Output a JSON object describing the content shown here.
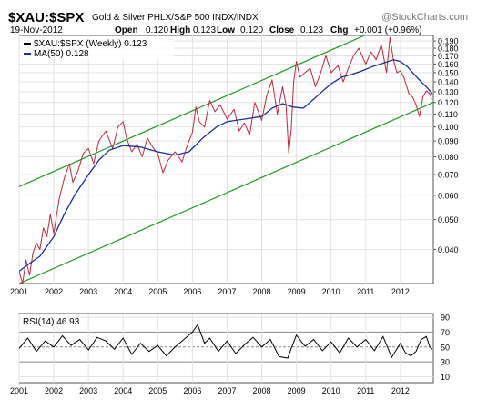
{
  "chart_data": [
    {
      "type": "line",
      "symbol": "$XAU:$SPX",
      "subtitle": "Gold & Silver PHLX/S&P 500  INDX/INDX",
      "watermark": "@StockCharts.com",
      "date": "19-Nov-2012",
      "ohlc": [
        {
          "label": "Open",
          "value": "0.120"
        },
        {
          "label": "Low",
          "value": "0.120"
        },
        {
          "label": "Close",
          "value": "0.123"
        },
        {
          "label": "Chg",
          "value": "+0.001 (+0.96%)"
        }
      ],
      "high_label": "High",
      "high_value": "0.123",
      "legend": [
        {
          "label": "$XAU:$SPX (Weekly) 0.123",
          "color": "#000000"
        },
        {
          "label": "MA(50) 0.128",
          "color": "#1a2f9a"
        }
      ],
      "y_scale": "log",
      "ylim": [
        0.031,
        0.198
      ],
      "xlim": [
        2001.0,
        2012.95
      ],
      "y_ticks": [
        0.19,
        0.18,
        0.17,
        0.16,
        0.15,
        0.14,
        0.13,
        0.12,
        0.11,
        0.1,
        0.09,
        0.08,
        0.07,
        0.06,
        0.05,
        0.04
      ],
      "y_tick_labels": [
        "0.190",
        "0.180",
        "0.170",
        "0.160",
        "0.150",
        "0.140",
        "0.130",
        "0.120",
        "0.110",
        "0.100",
        "0.090",
        "0.080",
        "0.070",
        "0.060",
        "0.050",
        "0.040"
      ],
      "x_ticks": [
        2001,
        2002,
        2003,
        2004,
        2005,
        2006,
        2007,
        2008,
        2009,
        2010,
        2011,
        2012
      ],
      "x_tick_labels": [
        "2001",
        "2002",
        "2003",
        "2004",
        "2005",
        "2006",
        "2007",
        "2008",
        "2009",
        "2010",
        "2011",
        "2012"
      ],
      "series": [
        {
          "name": "$XAU:$SPX (Weekly)",
          "color": "#c0283c",
          "x": [
            2001.0,
            2001.1,
            2001.2,
            2001.3,
            2001.4,
            2001.5,
            2001.6,
            2001.7,
            2001.8,
            2001.9,
            2002.0,
            2002.15,
            2002.3,
            2002.45,
            2002.55,
            2002.7,
            2002.85,
            2003.0,
            2003.15,
            2003.3,
            2003.5,
            2003.7,
            2003.85,
            2004.0,
            2004.1,
            2004.25,
            2004.4,
            2004.55,
            2004.7,
            2004.85,
            2005.0,
            2005.15,
            2005.3,
            2005.5,
            2005.7,
            2005.85,
            2006.0,
            2006.1,
            2006.2,
            2006.35,
            2006.5,
            2006.65,
            2006.8,
            2007.0,
            2007.2,
            2007.35,
            2007.5,
            2007.65,
            2007.8,
            2008.0,
            2008.15,
            2008.3,
            2008.45,
            2008.6,
            2008.7,
            2008.78,
            2008.85,
            2008.92,
            2009.0,
            2009.1,
            2009.25,
            2009.4,
            2009.55,
            2009.7,
            2009.85,
            2010.0,
            2010.2,
            2010.35,
            2010.5,
            2010.65,
            2010.8,
            2011.0,
            2011.15,
            2011.3,
            2011.45,
            2011.6,
            2011.7,
            2011.8,
            2011.9,
            2012.0,
            2012.1,
            2012.25,
            2012.35,
            2012.45,
            2012.55,
            2012.65,
            2012.75,
            2012.85,
            2012.9
          ],
          "values": [
            0.034,
            0.031,
            0.037,
            0.033,
            0.039,
            0.042,
            0.04,
            0.047,
            0.044,
            0.052,
            0.045,
            0.058,
            0.068,
            0.076,
            0.066,
            0.072,
            0.082,
            0.085,
            0.076,
            0.09,
            0.097,
            0.085,
            0.1,
            0.104,
            0.092,
            0.083,
            0.088,
            0.08,
            0.092,
            0.086,
            0.082,
            0.071,
            0.078,
            0.083,
            0.077,
            0.087,
            0.096,
            0.116,
            0.104,
            0.1,
            0.122,
            0.112,
            0.118,
            0.106,
            0.114,
            0.097,
            0.103,
            0.094,
            0.12,
            0.105,
            0.127,
            0.142,
            0.11,
            0.135,
            0.118,
            0.082,
            0.098,
            0.14,
            0.163,
            0.145,
            0.15,
            0.155,
            0.135,
            0.15,
            0.17,
            0.15,
            0.158,
            0.14,
            0.155,
            0.17,
            0.18,
            0.16,
            0.175,
            0.165,
            0.185,
            0.15,
            0.195,
            0.165,
            0.15,
            0.152,
            0.145,
            0.128,
            0.125,
            0.118,
            0.108,
            0.125,
            0.131,
            0.128,
            0.123
          ]
        },
        {
          "name": "MA(50)",
          "color": "#1a2f9a",
          "x": [
            2001.0,
            2001.3,
            2001.6,
            2002.0,
            2002.3,
            2002.6,
            2003.0,
            2003.3,
            2003.6,
            2004.0,
            2004.5,
            2005.0,
            2005.5,
            2005.9,
            2006.3,
            2006.7,
            2007.0,
            2007.5,
            2008.0,
            2008.3,
            2008.6,
            2008.9,
            2009.2,
            2009.5,
            2009.8,
            2010.0,
            2010.3,
            2010.6,
            2010.9,
            2011.2,
            2011.5,
            2011.8,
            2012.0,
            2012.2,
            2012.4,
            2012.6,
            2012.8,
            2012.92
          ],
          "values": [
            0.034,
            0.036,
            0.038,
            0.044,
            0.052,
            0.06,
            0.07,
            0.078,
            0.084,
            0.087,
            0.086,
            0.083,
            0.081,
            0.083,
            0.092,
            0.1,
            0.104,
            0.106,
            0.108,
            0.115,
            0.119,
            0.116,
            0.115,
            0.123,
            0.132,
            0.138,
            0.145,
            0.148,
            0.152,
            0.157,
            0.161,
            0.165,
            0.163,
            0.157,
            0.148,
            0.14,
            0.133,
            0.128
          ]
        }
      ],
      "trend_channel": {
        "color": "#1f9a1f",
        "upper": {
          "x": [
            2001.0,
            2012.95
          ],
          "values": [
            0.064,
            0.248
          ]
        },
        "lower": {
          "x": [
            2001.0,
            2012.95
          ],
          "values": [
            0.031,
            0.12
          ]
        }
      }
    },
    {
      "type": "line",
      "title": "RSI(14) 46.93",
      "ylim": [
        2,
        95
      ],
      "xlim": [
        2001.0,
        2012.95
      ],
      "y_ticks": [
        90,
        70,
        50,
        30,
        10
      ],
      "y_tick_labels": [
        "90",
        "70",
        "50",
        "30",
        "10"
      ],
      "x_ticks": [
        2001,
        2002,
        2003,
        2004,
        2005,
        2006,
        2007,
        2008,
        2009,
        2010,
        2011,
        2012
      ],
      "x_tick_labels": [
        "2001",
        "2002",
        "2003",
        "2004",
        "2005",
        "2006",
        "2007",
        "2008",
        "2009",
        "2010",
        "2011",
        "2012"
      ],
      "reference_lines": [
        70,
        50,
        30
      ],
      "series": [
        {
          "name": "RSI(14)",
          "color": "#000000",
          "x": [
            2001.0,
            2001.25,
            2001.5,
            2001.75,
            2002.0,
            2002.25,
            2002.5,
            2002.75,
            2003.0,
            2003.25,
            2003.5,
            2003.75,
            2004.0,
            2004.25,
            2004.5,
            2004.75,
            2005.0,
            2005.25,
            2005.5,
            2005.75,
            2006.0,
            2006.15,
            2006.35,
            2006.5,
            2006.75,
            2007.0,
            2007.25,
            2007.5,
            2007.75,
            2008.0,
            2008.25,
            2008.5,
            2008.75,
            2008.85,
            2009.0,
            2009.25,
            2009.5,
            2009.75,
            2010.0,
            2010.25,
            2010.5,
            2010.75,
            2011.0,
            2011.25,
            2011.5,
            2011.75,
            2012.0,
            2012.15,
            2012.3,
            2012.45,
            2012.6,
            2012.75,
            2012.85,
            2012.92
          ],
          "values": [
            48,
            62,
            44,
            58,
            50,
            65,
            52,
            60,
            46,
            63,
            58,
            47,
            62,
            40,
            55,
            44,
            52,
            38,
            50,
            60,
            70,
            80,
            55,
            62,
            44,
            58,
            41,
            53,
            63,
            50,
            60,
            37,
            35,
            48,
            66,
            51,
            60,
            45,
            57,
            42,
            62,
            50,
            60,
            45,
            64,
            36,
            55,
            42,
            38,
            44,
            60,
            64,
            50,
            47
          ]
        }
      ]
    }
  ]
}
